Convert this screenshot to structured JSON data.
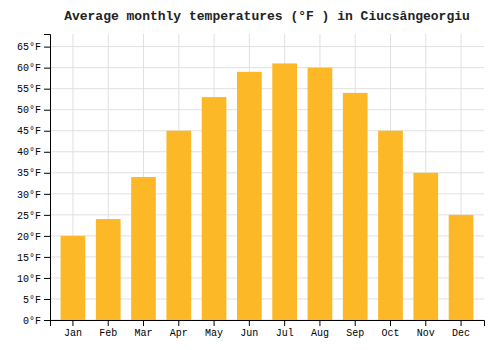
{
  "chart_data": {
    "type": "bar",
    "title": "Average monthly temperatures (°F ) in Ciucsângeorgiu",
    "categories": [
      "Jan",
      "Feb",
      "Mar",
      "Apr",
      "May",
      "Jun",
      "Jul",
      "Aug",
      "Sep",
      "Oct",
      "Nov",
      "Dec"
    ],
    "values": [
      20,
      24,
      34,
      45,
      53,
      59,
      61,
      60,
      54,
      45,
      35,
      25
    ],
    "color": "#FDB827",
    "ylim": [
      0,
      68
    ],
    "yticks": [
      {
        "value": 0,
        "label": "0°F"
      },
      {
        "value": 5,
        "label": "5°F"
      },
      {
        "value": 10,
        "label": "10°F"
      },
      {
        "value": 15,
        "label": "15°F"
      },
      {
        "value": 20,
        "label": "20°F"
      },
      {
        "value": 25,
        "label": "25°F"
      },
      {
        "value": 30,
        "label": "30°F"
      },
      {
        "value": 35,
        "label": "35°F"
      },
      {
        "value": 40,
        "label": "40°F"
      },
      {
        "value": 45,
        "label": "45°F"
      },
      {
        "value": 50,
        "label": "50°F"
      },
      {
        "value": 55,
        "label": "55°F"
      },
      {
        "value": 60,
        "label": "60°F"
      },
      {
        "value": 65,
        "label": "65°F"
      }
    ],
    "grid": true
  }
}
